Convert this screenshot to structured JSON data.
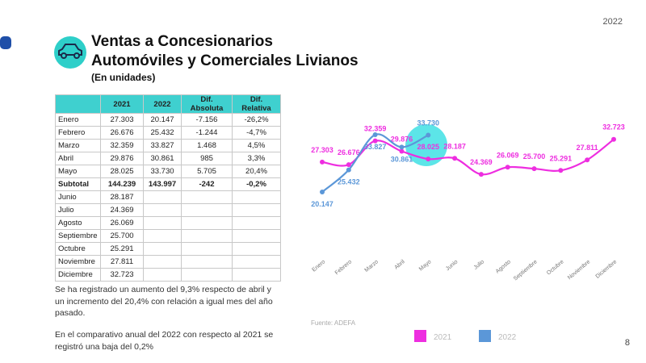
{
  "header": {
    "year": "2022",
    "title_line1": "Ventas a Concesionarios",
    "title_line2": "Automóviles y Comerciales Livianos",
    "subtitle": "(En unidades)"
  },
  "table": {
    "columns": [
      "",
      "2021",
      "2022",
      "Dif. Absoluta",
      "Dif. Relativa"
    ],
    "rows": [
      [
        "Enero",
        "27.303",
        "20.147",
        "-7.156",
        "-26,2%"
      ],
      [
        "Febrero",
        "26.676",
        "25.432",
        "-1.244",
        "-4,7%"
      ],
      [
        "Marzo",
        "32.359",
        "33.827",
        "1.468",
        "4,5%"
      ],
      [
        "Abril",
        "29.876",
        "30.861",
        "985",
        "3,3%"
      ],
      [
        "Mayo",
        "28.025",
        "33.730",
        "5.705",
        "20,4%"
      ],
      [
        "Subtotal",
        "144.239",
        "143.997",
        "-242",
        "-0,2%"
      ],
      [
        "Junio",
        "28.187"
      ],
      [
        "Julio",
        "24.369"
      ],
      [
        "Agosto",
        "26.069"
      ],
      [
        "Septiembre",
        "25.700"
      ],
      [
        "Octubre",
        "25.291"
      ],
      [
        "Noviembre",
        "27.811"
      ],
      [
        "Diciembre",
        "32.723"
      ]
    ]
  },
  "paragraphs": [
    "Se ha registrado un aumento del 9,3% respecto de abril y un incremento del 20,4% con relación a igual mes del año pasado.",
    "En el comparativo anual del 2022 con respecto al 2021 se registró una baja del 0,2%"
  ],
  "source": "Fuente: ADEFA",
  "page_number": "8",
  "chart_data": {
    "type": "line",
    "categories": [
      "Enero",
      "Febrero",
      "Marzo",
      "Abril",
      "Mayo",
      "Junio",
      "Julio",
      "Agosto",
      "Septiembre",
      "Octubre",
      "Noviembre",
      "Diciembre"
    ],
    "series": [
      {
        "name": "2021",
        "color": "#ee2ee0",
        "values": [
          27303,
          26676,
          32359,
          29876,
          28025,
          28187,
          24369,
          26069,
          25700,
          25291,
          27811,
          32723
        ],
        "value_labels": [
          "27.303",
          "26.676",
          "32.359",
          "29.876",
          "28.025",
          "28.187",
          "24.369",
          "26.069",
          "25.700",
          "25.291",
          "27.811",
          "32.723"
        ]
      },
      {
        "name": "2022",
        "color": "#5b97d8",
        "values": [
          20147,
          25432,
          33827,
          30861,
          33730,
          null,
          null,
          null,
          null,
          null,
          null,
          null
        ],
        "value_labels": [
          "20.147",
          "25.432",
          "33.827",
          "30.861",
          "33.730",
          null,
          null,
          null,
          null,
          null,
          null,
          null
        ]
      }
    ],
    "legend": "bottom"
  }
}
